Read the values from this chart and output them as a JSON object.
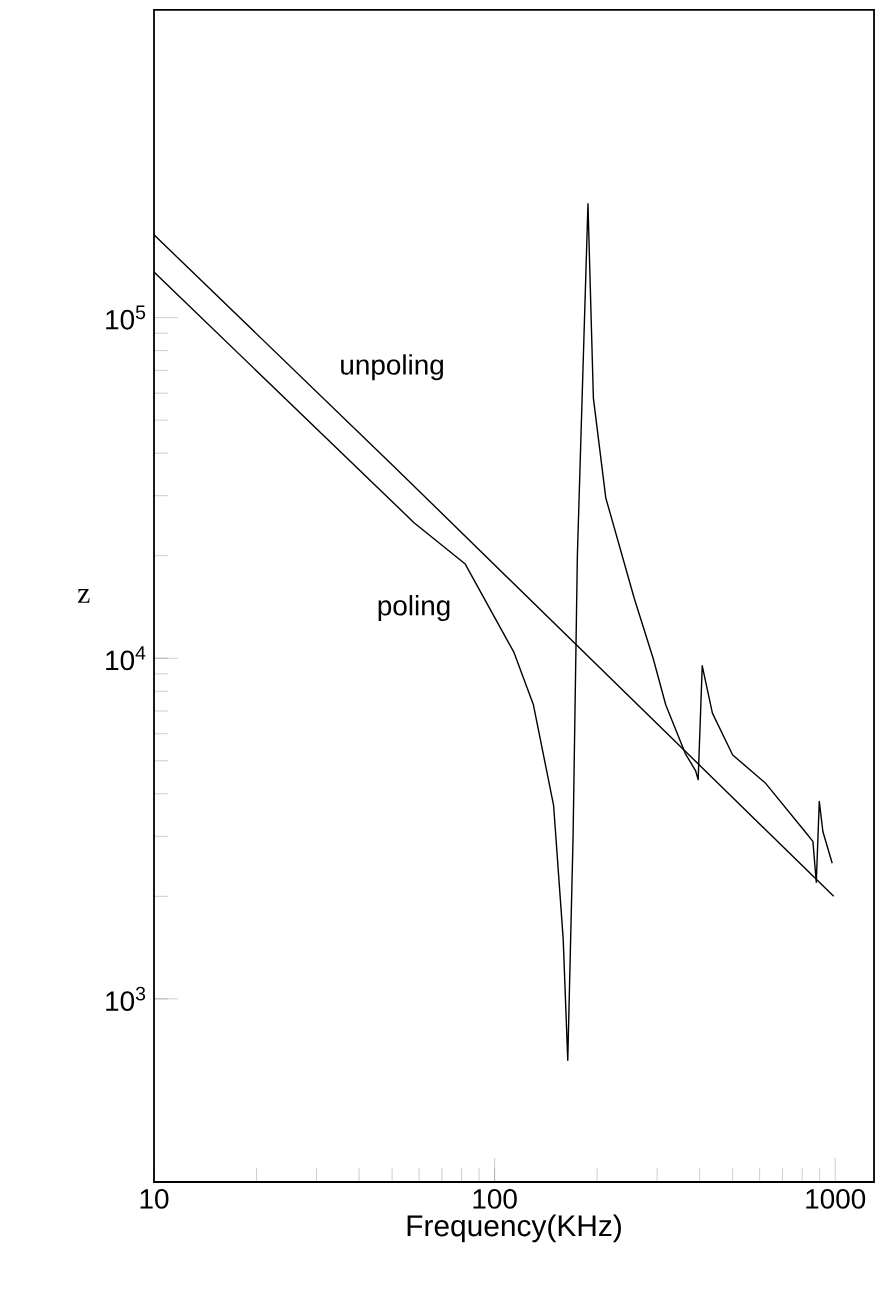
{
  "chart_data": {
    "type": "line",
    "xlabel": "Frequency(KHz)",
    "ylabel": "z",
    "log": "xy",
    "xlim": [
      10,
      1300
    ],
    "ylim": [
      290,
      800000
    ],
    "xticks": [
      10,
      100,
      1000
    ],
    "yticks": [
      {
        "value": 1000,
        "label": "10$^{3}$"
      },
      {
        "value": 10000,
        "label": "10$^{4}$"
      },
      {
        "value": 100000,
        "label": "10$^{5}$"
      }
    ],
    "marker": "none",
    "line_style": "solid",
    "series": [
      {
        "name": "unpoling",
        "color": "#000000",
        "x": [
          10,
          50,
          990
        ],
        "values": [
          175000,
          37000,
          2000
        ]
      },
      {
        "name": "poling",
        "color": "#000000",
        "x": [
          10,
          58,
          82,
          114,
          130,
          149,
          159,
          164,
          170,
          175,
          188,
          195,
          212,
          257,
          292,
          318,
          363,
          389,
          396,
          407,
          436,
          500,
          624,
          815,
          860,
          880,
          898,
          920,
          980
        ],
        "values": [
          136000,
          25000,
          18900,
          10400,
          7300,
          3700,
          1500,
          660,
          3000,
          20000,
          216000,
          58000,
          29600,
          15000,
          10000,
          7300,
          5250,
          4680,
          4400,
          9500,
          6900,
          5200,
          4300,
          3100,
          2900,
          2200,
          3800,
          3100,
          2500
        ]
      }
    ]
  }
}
